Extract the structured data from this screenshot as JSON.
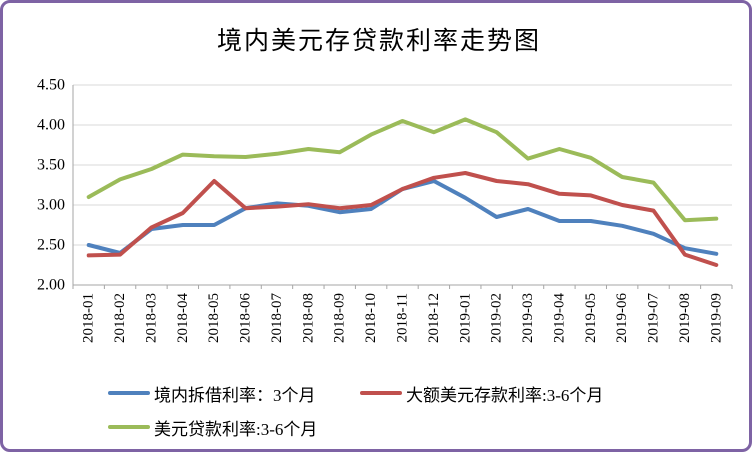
{
  "window": {
    "border_color": "#7e63a4",
    "background_color": "#ffffff"
  },
  "title": "境内美元存贷款利率走势图",
  "chart_data": {
    "type": "line",
    "title": "境内美元存贷款利率走势图",
    "categories": [
      "2018-01",
      "2018-02",
      "2018-03",
      "2018-04",
      "2018-05",
      "2018-06",
      "2018-07",
      "2018-08",
      "2018-09",
      "2018-10",
      "2018-11",
      "2018-12",
      "2019-01",
      "2019-02",
      "2019-03",
      "2019-04",
      "2019-05",
      "2019-06",
      "2019-07",
      "2019-08",
      "2019-09"
    ],
    "series": [
      {
        "name": "境内拆借利率：3个月",
        "color": "#4f81bd",
        "values": [
          2.5,
          2.4,
          2.7,
          2.75,
          2.75,
          2.96,
          3.02,
          2.99,
          2.91,
          2.95,
          3.2,
          3.3,
          3.09,
          2.85,
          2.95,
          2.8,
          2.8,
          2.74,
          2.64,
          2.46,
          2.39
        ]
      },
      {
        "name": "大额美元存款利率:3-6个月",
        "color": "#c0504d",
        "values": [
          2.37,
          2.38,
          2.72,
          2.9,
          3.3,
          2.96,
          2.98,
          3.01,
          2.96,
          3.0,
          3.2,
          3.34,
          3.4,
          3.3,
          3.26,
          3.14,
          3.12,
          3.0,
          2.93,
          2.38,
          2.25
        ]
      },
      {
        "name": "美元贷款利率:3-6个月",
        "color": "#9bbb59",
        "values": [
          3.1,
          3.32,
          3.45,
          3.63,
          3.61,
          3.6,
          3.64,
          3.7,
          3.66,
          3.88,
          4.05,
          3.91,
          4.07,
          3.91,
          3.58,
          3.7,
          3.59,
          3.35,
          3.28,
          2.81,
          2.83
        ]
      }
    ],
    "ylim": [
      2.0,
      4.5
    ],
    "ytick_step": 0.5,
    "ytick_labels": [
      "2.00",
      "2.50",
      "3.00",
      "3.50",
      "4.00",
      "4.50"
    ],
    "grid": true,
    "gridline_color": "#d9d9d9",
    "axis_color": "#a6a6a6",
    "tick_label_color": "#000000",
    "legend_position": "bottom",
    "line_width": 4
  }
}
